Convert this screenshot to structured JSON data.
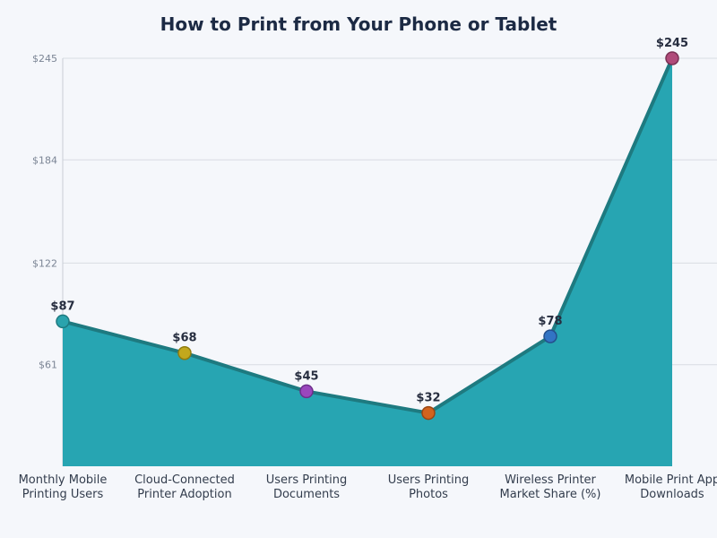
{
  "chart_data": {
    "type": "area",
    "title": "How to Print from Your Phone or Tablet",
    "categories": [
      [
        "Monthly Mobile",
        "Printing Users"
      ],
      [
        "Cloud-Connected",
        "Printer Adoption"
      ],
      [
        "Users Printing",
        "Documents"
      ],
      [
        "Users Printing",
        "Photos"
      ],
      [
        "Wireless Printer",
        "Market Share (%)"
      ],
      [
        "Mobile Print App",
        "Downloads"
      ]
    ],
    "values": [
      87,
      68,
      45,
      32,
      78,
      245
    ],
    "data_labels": [
      "$87",
      "$68",
      "$45",
      "$32",
      "$78",
      "$245"
    ],
    "yticks": [
      61,
      122,
      184,
      245
    ],
    "ytick_labels": [
      "$61",
      "$122",
      "$184",
      "$245"
    ],
    "ylim": [
      0,
      245
    ],
    "grid": true,
    "colors": {
      "area_fill": "#27a5b2",
      "line": "#1e7a80",
      "grid": "#d8dce3",
      "markers": [
        "#2aa3ad",
        "#c2a81d",
        "#9a47bd",
        "#d1631f",
        "#3274c4",
        "#b04b7a"
      ],
      "marker_strokes": [
        "#1e7a80",
        "#8f7c10",
        "#6c2f8a",
        "#9a4512",
        "#244f8c",
        "#7a3154"
      ]
    }
  }
}
